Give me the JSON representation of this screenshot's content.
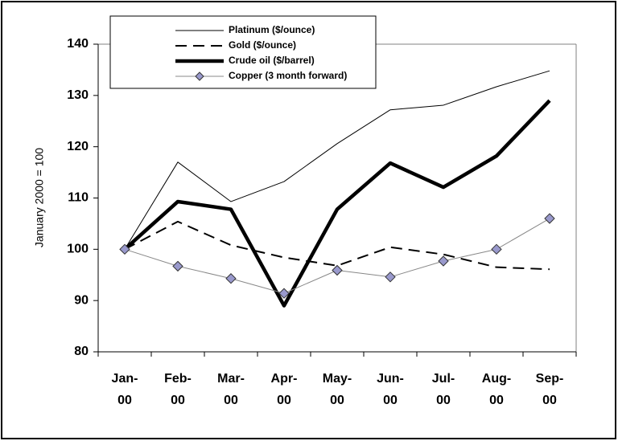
{
  "chart_data": {
    "type": "line",
    "y_label": "January 2000 = 100",
    "categories": [
      "Jan-00",
      "Feb-00",
      "Mar-00",
      "Apr-00",
      "May-00",
      "Jun-00",
      "Jul-00",
      "Aug-00",
      "Sep-00"
    ],
    "series": [
      {
        "name": "Platinum ($/ounce)",
        "color": "#000000",
        "line_width": 1,
        "dash": false,
        "values": [
          100,
          117,
          109.3,
          113.2,
          120.6,
          127.2,
          128.1,
          131.7,
          134.8
        ]
      },
      {
        "name": "Gold ($/ounce)",
        "color": "#000000",
        "line_width": 2,
        "dash": true,
        "values": [
          100,
          105.4,
          100.8,
          98.4,
          96.8,
          100.4,
          99,
          96.5,
          96.1
        ]
      },
      {
        "name": "Crude oil ($/barrel)",
        "color": "#000000",
        "line_width": 4.5,
        "dash": false,
        "values": [
          100,
          109.3,
          107.8,
          89,
          107.8,
          116.8,
          112.1,
          118.2,
          129
        ]
      },
      {
        "name": "Copper (3 month forward)",
        "color": "#888888",
        "line_width": 1,
        "dash": false,
        "marker": "diamond",
        "marker_color": "#9999cc",
        "values": [
          100,
          96.7,
          94.3,
          91.4,
          95.9,
          94.6,
          97.7,
          100,
          106
        ]
      }
    ],
    "ylim": [
      80,
      140
    ],
    "yticks": [
      80,
      90,
      100,
      110,
      120,
      130,
      140
    ]
  }
}
